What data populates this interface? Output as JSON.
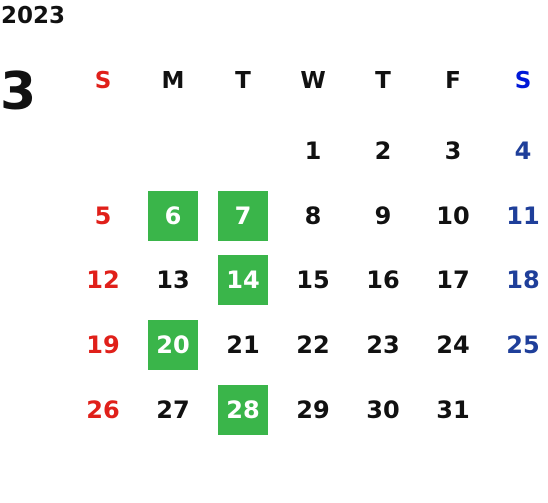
{
  "year": "2023",
  "month": "3",
  "colors": {
    "sunday": "#e0201a",
    "saturday": "#0018d8",
    "saturday_dates": "#1f3f9a",
    "weekday": "#111111",
    "highlight_bg": "#3ab54a",
    "highlight_text": "#ffffff"
  },
  "weekdays": [
    "S",
    "M",
    "T",
    "W",
    "T",
    "F",
    "S"
  ],
  "weeks": [
    [
      "",
      "",
      "",
      "1",
      "2",
      "3",
      "4"
    ],
    [
      "5",
      "6",
      "7",
      "8",
      "9",
      "10",
      "11"
    ],
    [
      "12",
      "13",
      "14",
      "15",
      "16",
      "17",
      "18"
    ],
    [
      "19",
      "20",
      "21",
      "22",
      "23",
      "24",
      "25"
    ],
    [
      "26",
      "27",
      "28",
      "29",
      "30",
      "31",
      ""
    ]
  ],
  "highlighted_days": [
    "6",
    "7",
    "14",
    "20",
    "28"
  ]
}
